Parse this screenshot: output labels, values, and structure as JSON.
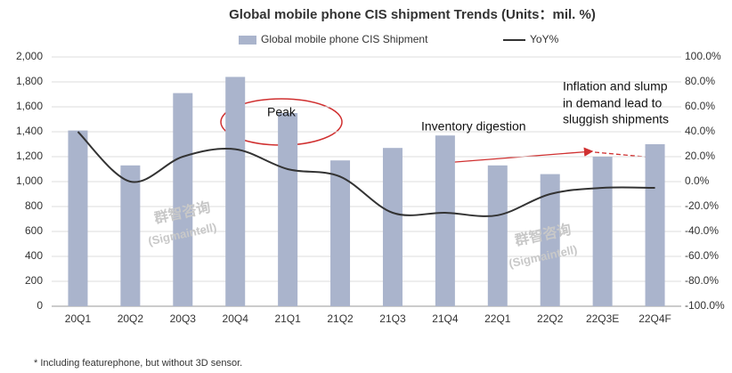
{
  "chart_data": {
    "type": "bar",
    "title": "Global mobile phone CIS shipment Trends (Units：mil. %)",
    "categories": [
      "20Q1",
      "20Q2",
      "20Q3",
      "20Q4",
      "21Q1",
      "21Q2",
      "21Q3",
      "21Q4",
      "22Q1",
      "22Q2",
      "22Q3E",
      "22Q4F"
    ],
    "series": [
      {
        "name": "Global mobile phone CIS Shipment",
        "color": "#aab4cc",
        "type": "bar",
        "values": [
          1410,
          1130,
          1710,
          1840,
          1550,
          1170,
          1270,
          1370,
          1130,
          1060,
          1200,
          1300
        ]
      },
      {
        "name": "YoY%",
        "color": "#333333",
        "type": "line",
        "axis": "y2",
        "values": [
          40,
          0,
          20,
          26,
          10,
          4,
          -25,
          -25,
          -27,
          -10,
          -5,
          -5
        ]
      }
    ],
    "ylim": [
      0,
      2000
    ],
    "yticks": [
      0,
      {
        "value": 200,
        "label": "200"
      },
      400,
      600,
      800,
      {
        "value": 1000,
        "label": "1,000"
      },
      {
        "value": 1200,
        "label": "1,200"
      },
      {
        "value": 1400,
        "label": "1,400"
      },
      {
        "value": 1600,
        "label": "1,600"
      },
      {
        "value": 1800,
        "label": "1,800"
      },
      {
        "value": 2000,
        "label": "2,000"
      }
    ],
    "y2lim": [
      -100,
      100
    ],
    "y2ticks": [
      {
        "value": -100,
        "label": "-100.0%"
      },
      {
        "value": -80,
        "label": "-80.0%"
      },
      {
        "value": -60,
        "label": "-60.0%"
      },
      {
        "value": -40,
        "label": "-40.0%"
      },
      {
        "value": -20,
        "label": "-20.0%"
      },
      {
        "value": 0,
        "label": "0.0%"
      },
      {
        "value": 20,
        "label": "20.0%"
      },
      {
        "value": 40,
        "label": "40.0%"
      },
      {
        "value": 60,
        "label": "60.0%"
      },
      {
        "value": 80,
        "label": "80.0%"
      },
      {
        "value": 100,
        "label": "100.0%"
      }
    ],
    "grid": true,
    "annotations": [
      "Peak",
      "Inventory digestion",
      "Inflation and slump",
      "in demand lead to",
      "sluggish shipments"
    ],
    "watermark": [
      "群智咨询",
      "(Sigmaintell)"
    ],
    "footnote": "* Including featurephone, but without 3D sensor."
  }
}
